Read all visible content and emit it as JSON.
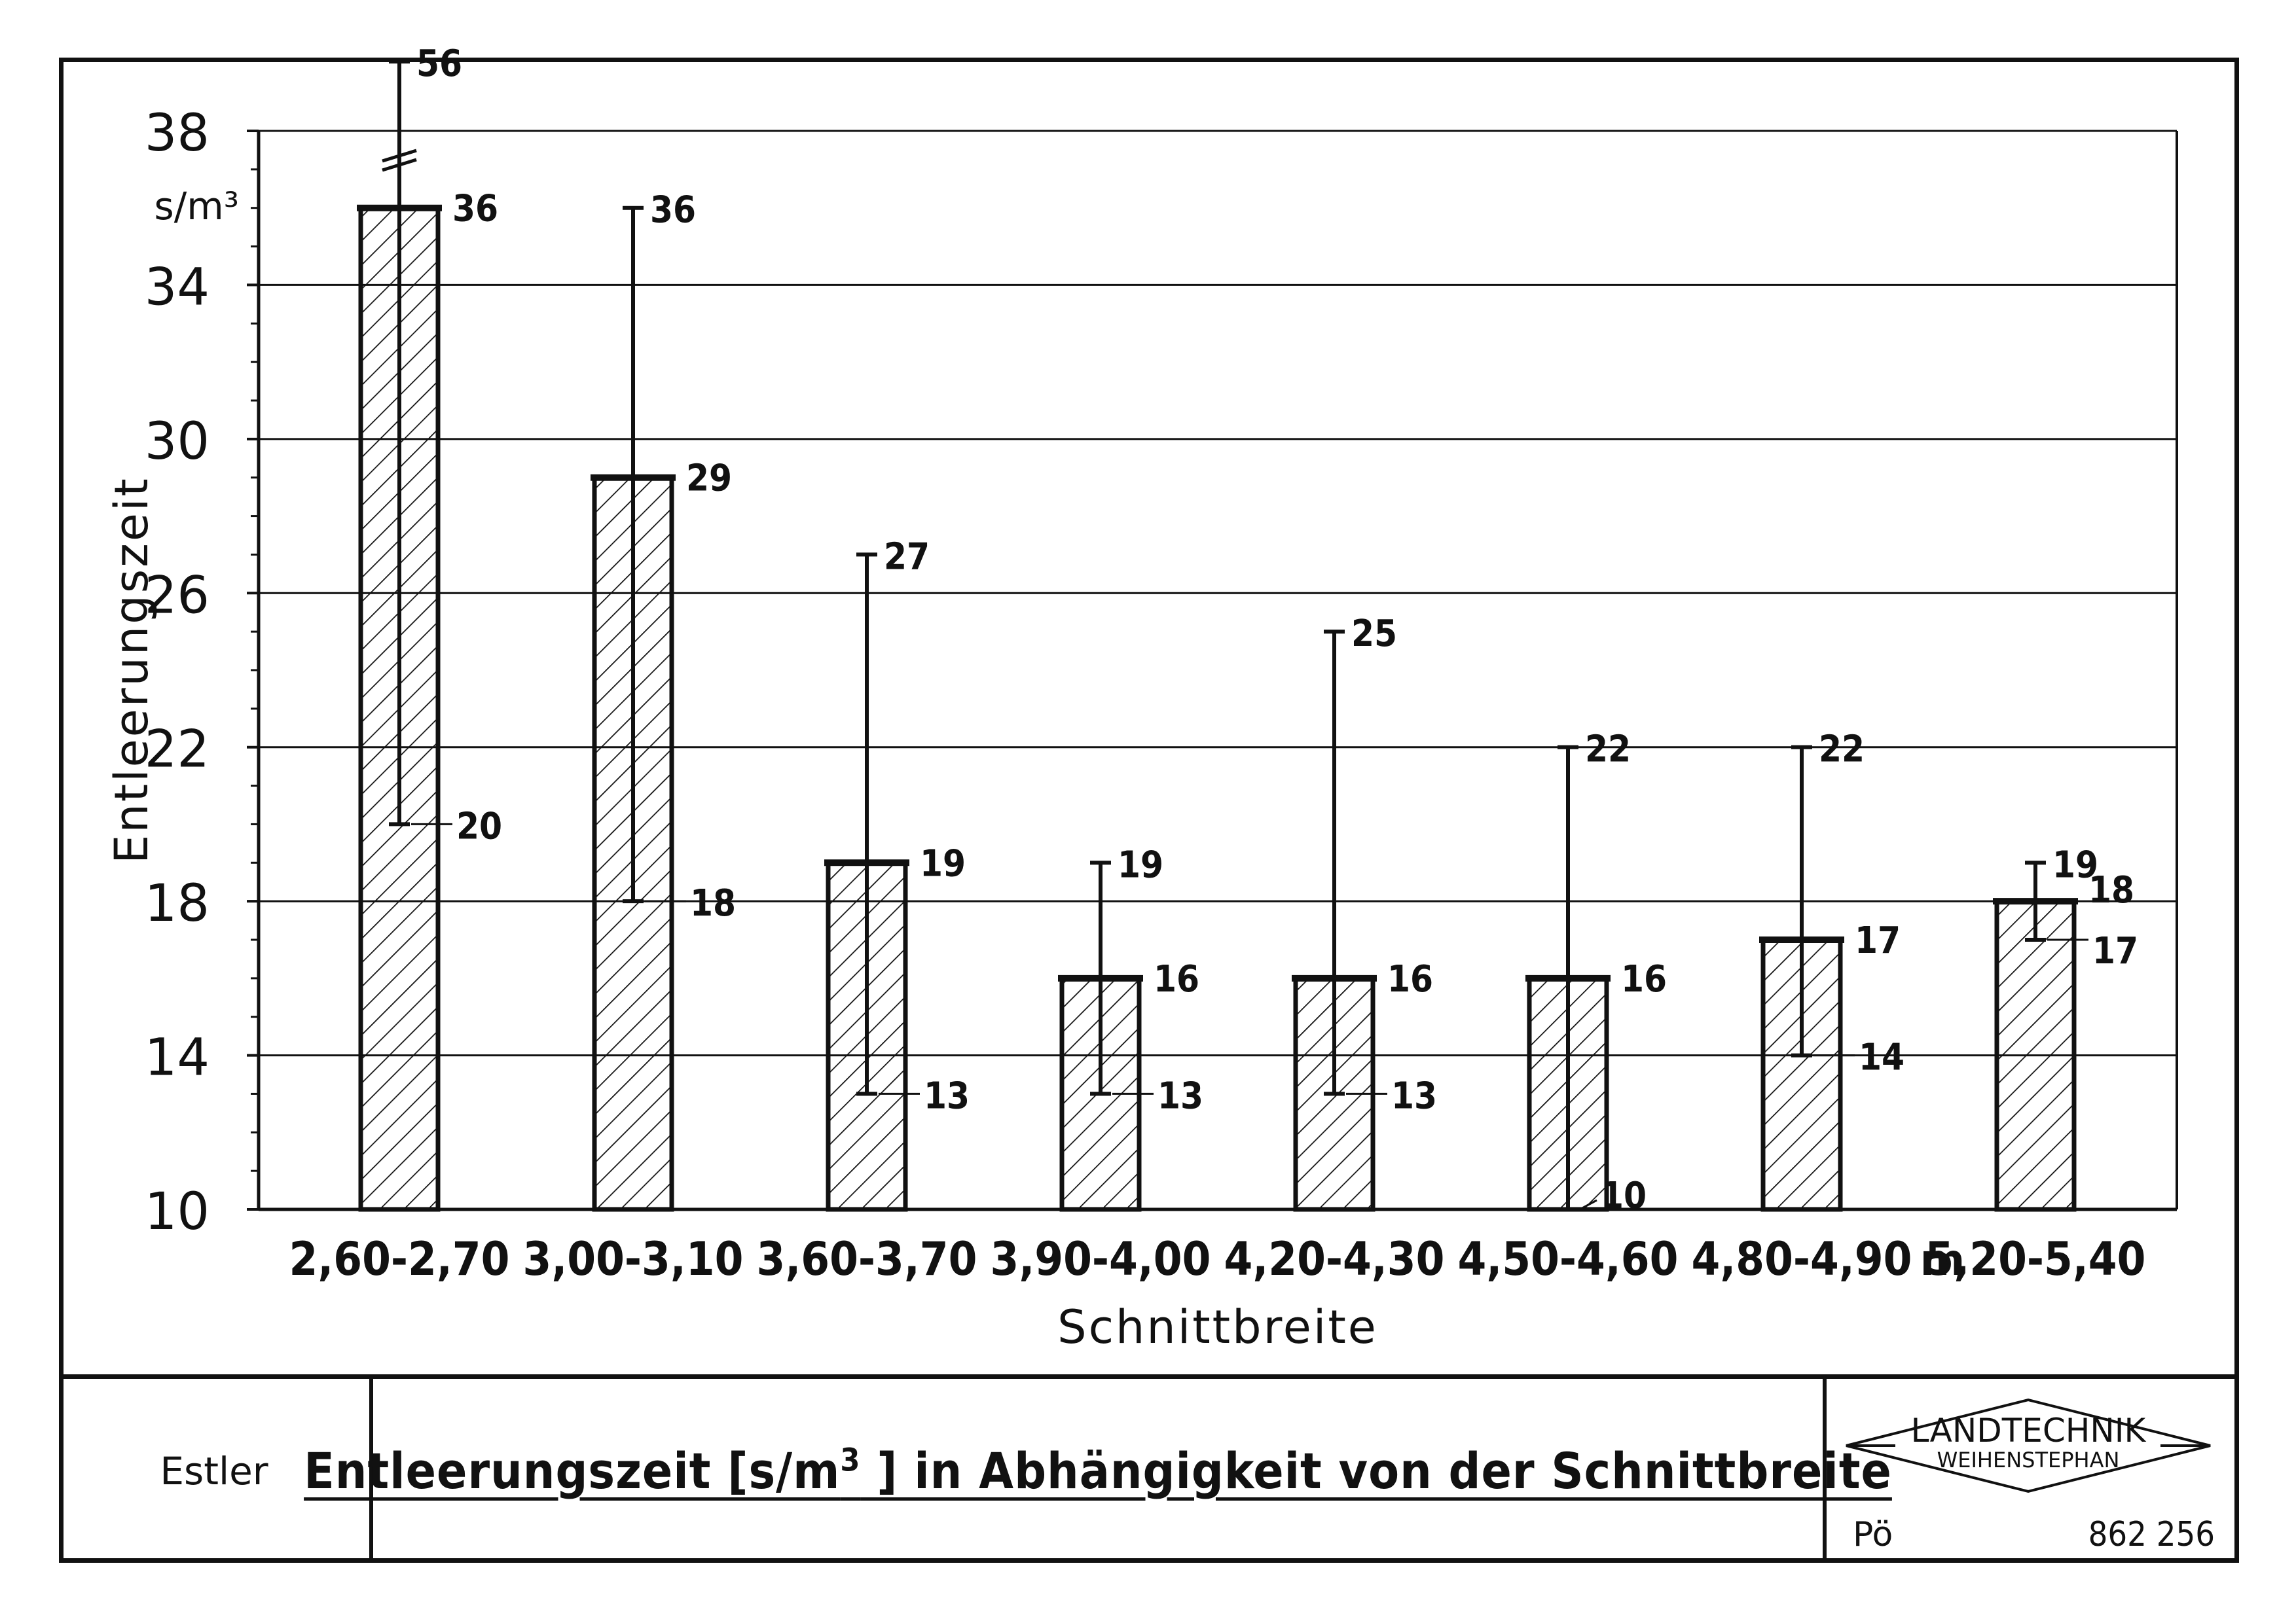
{
  "chart_data": {
    "type": "bar",
    "title": "",
    "xlabel": "Schnittbreite",
    "ylabel": "Entleerungszeit",
    "yunit": "s/m³",
    "x_unit_suffix": "m",
    "ylim": [
      10,
      38
    ],
    "y_major_ticks": [
      "10",
      "14",
      "18",
      "22",
      "26",
      "30",
      "34",
      "38"
    ],
    "grid": true,
    "categories": [
      "2,60-2,70",
      "3,00-3,10",
      "3,60-3,70",
      "3,90-4,00",
      "4,20-4,30",
      "4,50-4,60",
      "4,80-4,90",
      "5,20-5,40"
    ],
    "values": [
      36,
      29,
      19,
      16,
      16,
      16,
      17,
      18
    ],
    "range_max": [
      56,
      36,
      27,
      19,
      25,
      22,
      22,
      19
    ],
    "range_min": [
      20,
      18,
      13,
      13,
      13,
      10,
      14,
      17
    ],
    "labels_max": [
      "56",
      "36",
      "27",
      "19",
      "25",
      "22",
      "22",
      "19"
    ],
    "labels_mean": [
      "36",
      "29",
      "19",
      "16",
      "16",
      "16",
      "17",
      "18"
    ],
    "labels_min": [
      "20",
      "18",
      "13",
      "13",
      "13",
      "10",
      "14",
      "17"
    ],
    "axis_break_note": "upper whisker of first bar broken above 38"
  },
  "footer": {
    "author": "Estler",
    "title_main": "Entleerungszeit [s/m",
    "title_sup": "3",
    "title_rest": " ] in Abhängigkeit von der Schnittbreite",
    "logo_line1": "LANDTECHNIK",
    "logo_line2": "WEIHENSTEPHAN",
    "code_left": "Pö",
    "code_right": "862 256"
  },
  "colors": {
    "ink": "#111111",
    "paper": "#ffffff"
  }
}
